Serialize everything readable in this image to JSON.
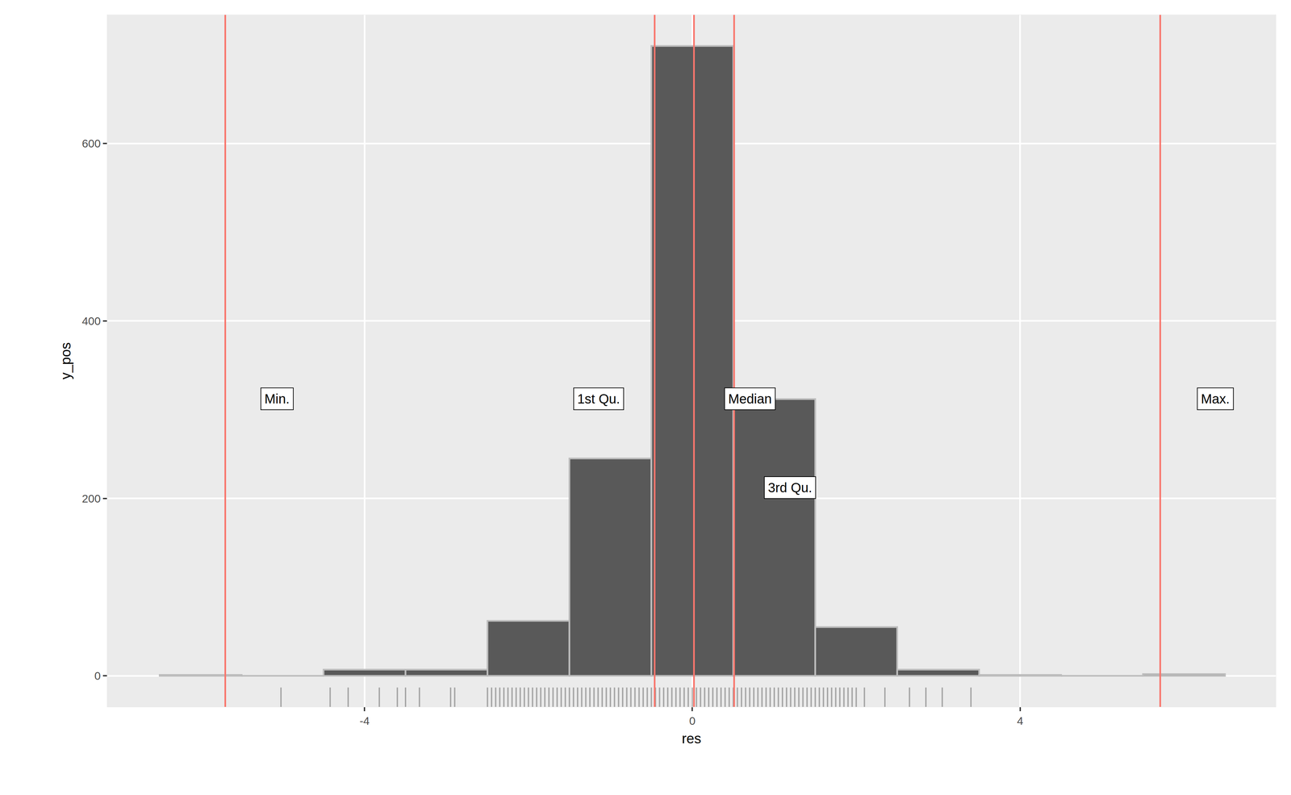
{
  "chart_data": {
    "type": "histogram",
    "x_label": "res",
    "y_label": "y_pos",
    "bins": [
      -6.5,
      -5.5,
      -4.5,
      -3.5,
      -2.5,
      -1.5,
      -0.5,
      0.5,
      1.5,
      2.5,
      3.5,
      4.5,
      5.5,
      6.5
    ],
    "counts": [
      1,
      0,
      7,
      7,
      62,
      245,
      710,
      312,
      55,
      7,
      1,
      0,
      2
    ],
    "color": "#595959",
    "xlim": [
      -7.14,
      7.12
    ],
    "ylim": [
      -35,
      745
    ],
    "xticks": [
      -4,
      0,
      4
    ],
    "yticks": [
      0,
      200,
      400,
      600
    ],
    "grid": true,
    "reference_lines": [
      {
        "label": "Min.",
        "value": -5.7
      },
      {
        "label": "1st Qu.",
        "value": -0.46
      },
      {
        "label": "Median",
        "value": 0.02
      },
      {
        "label": "3rd Qu.",
        "value": 0.51
      },
      {
        "label": "Max.",
        "value": 5.71
      }
    ],
    "reference_color": "#F8766D",
    "rug": [
      -5.02,
      -4.42,
      -4.2,
      -3.82,
      -3.6,
      -3.5,
      -3.33,
      -2.95,
      -2.9,
      -2.5,
      -2.45,
      -2.4,
      -2.35,
      -2.3,
      -2.25,
      -2.2,
      -2.15,
      -2.1,
      -2.05,
      -2.0,
      -1.95,
      -1.9,
      -1.85,
      -1.8,
      -1.75,
      -1.7,
      -1.65,
      -1.6,
      -1.55,
      -1.5,
      -1.45,
      -1.4,
      -1.35,
      -1.3,
      -1.25,
      -1.2,
      -1.15,
      -1.1,
      -1.05,
      -1.0,
      -0.95,
      -0.9,
      -0.85,
      -0.8,
      -0.75,
      -0.7,
      -0.65,
      -0.6,
      -0.55,
      -0.5,
      -0.45,
      -0.4,
      -0.35,
      -0.3,
      -0.25,
      -0.2,
      -0.15,
      -0.1,
      -0.05,
      0.0,
      0.05,
      0.1,
      0.15,
      0.2,
      0.25,
      0.3,
      0.35,
      0.4,
      0.45,
      0.5,
      0.55,
      0.6,
      0.65,
      0.7,
      0.75,
      0.8,
      0.85,
      0.9,
      0.95,
      1.0,
      1.05,
      1.1,
      1.15,
      1.2,
      1.25,
      1.3,
      1.35,
      1.4,
      1.45,
      1.5,
      1.55,
      1.6,
      1.65,
      1.7,
      1.75,
      1.8,
      1.85,
      1.9,
      1.95,
      2.0,
      2.1,
      2.35,
      2.65,
      2.85,
      3.05,
      3.4
    ]
  }
}
